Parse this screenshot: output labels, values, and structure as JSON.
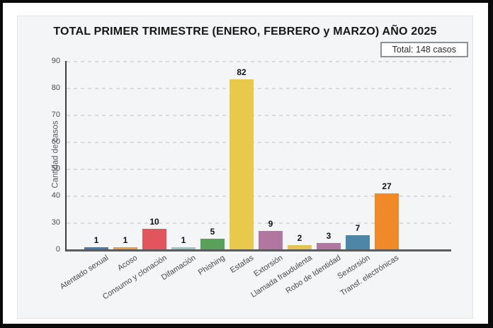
{
  "header": {
    "title": "TOTAL PRIMER TRIMESTRE (ENERO, FEBRERO y MARZO) AÑO 2025",
    "total_badge": "Total: 148 casos"
  },
  "chart_data": {
    "type": "bar",
    "title": "TOTAL PRIMER TRIMESTRE (ENERO, FEBRERO y MARZO) AÑO 2025",
    "annotation": "Total: 148 casos",
    "total_cases": 148,
    "categories": [
      "Atentado sexual",
      "Acoso",
      "Consumo y clonación",
      "Difamación",
      "Phishing",
      "Estafas",
      "Extorsión",
      "Llamada fraudulenta",
      "Robo de Identidad",
      "Sextorsión",
      "Transf. electrónicas"
    ],
    "values": [
      1,
      1,
      10,
      1,
      5,
      82,
      9,
      2,
      3,
      7,
      27
    ],
    "bar_colors": [
      "#4a79a4",
      "#f0993a",
      "#e3555c",
      "#9cc3bd",
      "#58a15a",
      "#e9c94c",
      "#b277a0",
      "#e6c352",
      "#b277a0",
      "#4d87a7",
      "#f08a28"
    ],
    "ylabel": "Cantidad de casos",
    "xlabel": "",
    "y_ticks": [
      90,
      80,
      70,
      60,
      50,
      40,
      30,
      0
    ],
    "ylim": [
      0,
      91
    ],
    "grid": "horizontal-dashed",
    "legend": "none",
    "value_labels": "above-bars"
  }
}
